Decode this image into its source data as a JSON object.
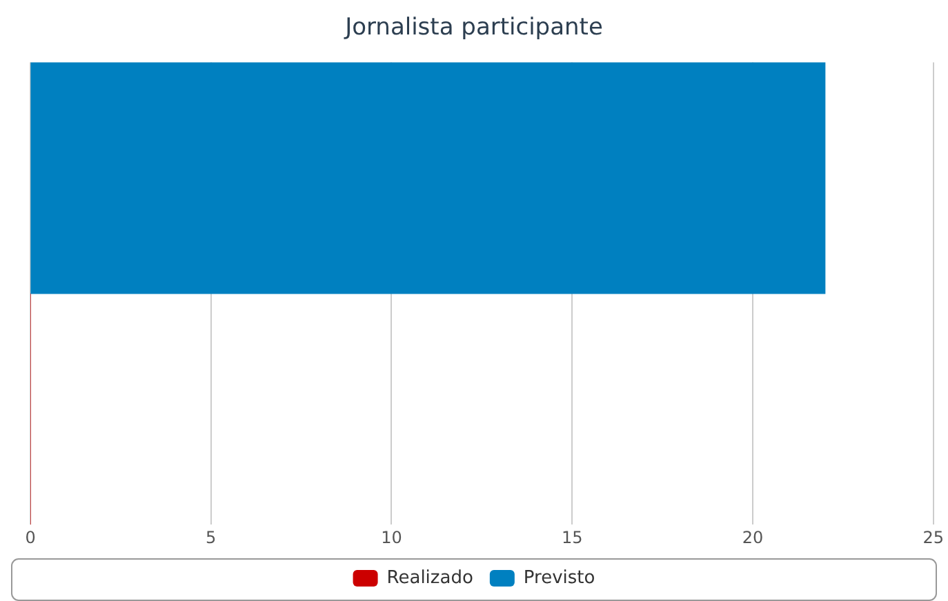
{
  "chart_data": {
    "type": "bar",
    "orientation": "horizontal",
    "title": "Jornalista participante",
    "categories": [
      null
    ],
    "series": [
      {
        "name": "Realizado",
        "color": "#cc0000",
        "values": [
          0
        ]
      },
      {
        "name": "Previsto",
        "color": "#0080c0",
        "values": [
          22
        ]
      }
    ],
    "xlim": [
      0,
      25
    ],
    "xticks": [
      0,
      5,
      10,
      15,
      20,
      25
    ],
    "grid": "x",
    "legend": "bottom"
  }
}
